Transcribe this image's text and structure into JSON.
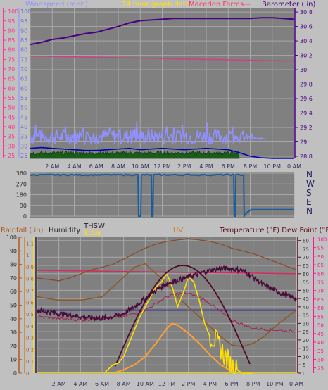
{
  "header": {
    "wind_label": "Windspeed (mph)",
    "title": "24 hour graph data",
    "station": "Macedon Farms",
    "sep": "---",
    "baro_label": "Barometer (.in)"
  },
  "bottom_header": {
    "rain_label": "Rainfall (.in)",
    "humidity_label": "Humidity",
    "thsw_label": "THSW",
    "solar_label": "Solar",
    "uv_label": "UV",
    "temp_label": "Temperature (°F) Dew Point (°F)"
  },
  "time_ticks": [
    "2 AM",
    "4 AM",
    "6 AM",
    "8 AM",
    "10 AM",
    "12 PM",
    "2 PM",
    "4 PM",
    "6 PM",
    "8 PM",
    "10 PM",
    "0 AM"
  ],
  "colors": {
    "background": "#c0c0c0",
    "plot": "#808080",
    "grid": "#a8a8a8",
    "wind_axis": "#ff3399",
    "baro_axis": "#4b0082",
    "gust": "#9090ff",
    "avg_wind": "#0000c0",
    "wind_fill": "#1a5c1a",
    "barometer": "#4b0082",
    "windspeed_line": "#d04080",
    "direction": "#1a5ca0",
    "rain_axis": "#b05a20",
    "uv_axis": "#d08020",
    "thsw_axis": "#2a1a2a",
    "solar_axis": "#ffe000",
    "temp_axis": "#5a0a1a",
    "dew_axis": "#ff1493",
    "temperature": "#4a0a3a",
    "humidity": "#8b5a2b",
    "dewpoint": "#d03060",
    "solar": "#ffe000",
    "uv": "#ffa030",
    "thsw": "#500a2a",
    "hum_upper": "#a03040",
    "rain": "#e0d000",
    "baseline": "#303090"
  },
  "chart_data": [
    {
      "type": "line",
      "name": "wind_barometer",
      "x_ticks": [
        "2 AM",
        "4 AM",
        "6 AM",
        "8 AM",
        "10 AM",
        "12 PM",
        "2 PM",
        "4 PM",
        "6 PM",
        "8 PM",
        "10 PM",
        "0 AM"
      ],
      "wind_axis": {
        "label": "Windspeed (mph)",
        "ticks": [
          25,
          30,
          35,
          40,
          45,
          50,
          55,
          60,
          65,
          70,
          75,
          80,
          85,
          90,
          95,
          100
        ],
        "ylim": [
          23.5,
          101.5
        ]
      },
      "baro_axis": {
        "label": "Barometer (.in)",
        "ticks": [
          "28.8",
          "29",
          "29.2",
          "29.4",
          "29.6",
          "29.8",
          "30",
          "30.2",
          "30.4",
          "30.6",
          "30.8"
        ],
        "ylim": [
          28.77,
          30.85
        ]
      },
      "barometer": {
        "x": [
          0,
          1,
          2,
          3,
          4,
          5,
          6,
          7,
          8,
          9,
          10,
          11,
          12,
          13,
          14,
          15,
          16,
          17,
          18,
          19,
          20,
          21,
          22,
          23,
          24
        ],
        "y": [
          30.35,
          30.38,
          30.42,
          30.44,
          30.47,
          30.5,
          30.52,
          30.56,
          30.6,
          30.65,
          30.68,
          30.69,
          30.7,
          30.71,
          30.71,
          30.71,
          30.71,
          30.71,
          30.71,
          30.71,
          30.71,
          30.72,
          30.72,
          30.71,
          30.7
        ]
      },
      "level_line": {
        "x": [
          0,
          24
        ],
        "y": [
          30.19,
          30.12
        ]
      },
      "gust": {
        "base_y": 29.04,
        "amp": 0.22,
        "peak_y": 29.45,
        "end_x": 21.5
      },
      "avg_wind": {
        "x": [
          0,
          1,
          2,
          3,
          4,
          5,
          6,
          7,
          8,
          9,
          10,
          11,
          12,
          13,
          14,
          15,
          16,
          17,
          18,
          19,
          20,
          21,
          22,
          23,
          24
        ],
        "y": [
          28.91,
          28.92,
          28.91,
          28.9,
          28.89,
          28.88,
          28.88,
          28.89,
          28.9,
          28.91,
          28.89,
          28.9,
          28.91,
          28.9,
          28.89,
          28.9,
          28.91,
          28.9,
          28.89,
          28.85,
          28.8,
          28.78,
          28.77,
          28.77,
          28.77
        ]
      },
      "wind_fill_top": 28.87
    },
    {
      "type": "line",
      "name": "wind_direction",
      "left_ticks": [
        "360",
        "270",
        "180",
        "90",
        "0"
      ],
      "right_ticks": [
        "N",
        "W",
        "S",
        "E",
        "N"
      ],
      "ylim": [
        0,
        360
      ],
      "x": [
        0,
        9.8,
        9.85,
        10.05,
        10.1,
        11,
        11.05,
        11.15,
        11.2,
        18.5,
        18.55,
        18.65,
        18.7,
        19.4,
        19.45,
        19.7,
        20.1,
        24
      ],
      "y": [
        345,
        345,
        0,
        0,
        345,
        345,
        0,
        0,
        345,
        345,
        0,
        0,
        345,
        345,
        0,
        30,
        55,
        55
      ]
    },
    {
      "type": "line",
      "name": "temperature_humidity_solar",
      "x_ticks": [
        "2 AM",
        "4 AM",
        "6 AM",
        "8 AM",
        "10 AM",
        "12 PM",
        "2 PM",
        "4 PM",
        "6 PM",
        "8 PM",
        "10 PM",
        "0 AM"
      ],
      "rain_ticks": [
        "0",
        "10",
        "20",
        "30",
        "40",
        "50",
        "60",
        "70",
        "80",
        "90",
        "100"
      ],
      "uv_ticks": [
        "0",
        "0.1",
        "0.2",
        "0.3",
        "0.4",
        "0.5",
        "0.6",
        "0.7",
        "0.8",
        "0.9",
        "1",
        "1.1"
      ],
      "thsw_ticks": [
        "0",
        "0.1",
        "0.2",
        "0.3",
        "0.4",
        "0.5",
        "0.6",
        "0.7",
        "0.8",
        "0.9",
        "1",
        "1.1"
      ],
      "temp_ticks": [
        "0",
        "5",
        "10",
        "15",
        "20",
        "25",
        "30",
        "35",
        "40",
        "45",
        "50",
        "55",
        "60",
        "65",
        "70",
        "75",
        "80"
      ],
      "dew_ticks": [
        "25",
        "30",
        "35",
        "40",
        "45",
        "50",
        "55",
        "60",
        "65",
        "70",
        "75",
        "80",
        "85",
        "90",
        "95",
        "100"
      ],
      "temperature": {
        "x": [
          0,
          2,
          4,
          6,
          7,
          8,
          9,
          10,
          11,
          12,
          13,
          14,
          15,
          16,
          17,
          18,
          19,
          20,
          21,
          22,
          23,
          24
        ],
        "y": [
          38,
          36,
          34,
          33,
          34,
          36,
          40,
          45,
          50,
          54,
          56,
          58,
          60,
          62,
          63,
          63,
          62,
          58,
          53,
          50,
          47,
          45
        ]
      },
      "humidity": {
        "x": [
          0,
          2,
          4,
          6,
          8,
          9,
          10,
          11,
          12,
          13,
          14,
          15,
          16,
          17,
          18,
          19,
          20,
          21,
          22,
          23,
          24
        ],
        "y": [
          46,
          44,
          44,
          46,
          58,
          64,
          66,
          60,
          54,
          46,
          40,
          34,
          28,
          22,
          17,
          16,
          18,
          22,
          28,
          33,
          38
        ]
      },
      "dewpoint": {
        "x": [
          0,
          2,
          4,
          6,
          8,
          10,
          12,
          13,
          14,
          15,
          16,
          18,
          20,
          22,
          24
        ],
        "y": [
          34,
          33,
          32,
          33,
          34,
          38,
          46,
          48,
          48,
          46,
          42,
          32,
          27,
          26,
          25
        ]
      },
      "level_line": {
        "x": [
          0,
          24
        ],
        "y": [
          62,
          60
        ]
      },
      "hum_upper": {
        "x": [
          0,
          1,
          2,
          3,
          4,
          5,
          6,
          7,
          8,
          9,
          10,
          11,
          12,
          13,
          14,
          15,
          16,
          17,
          18,
          19,
          20,
          21,
          22,
          23,
          24
        ],
        "y": [
          70,
          69,
          68,
          70,
          73,
          76,
          78,
          80,
          84,
          88,
          92,
          95,
          97,
          98,
          99,
          98,
          97,
          95,
          92,
          90,
          88,
          85,
          82,
          79,
          76
        ]
      },
      "thsw": {
        "x": [
          5.5,
          6,
          7,
          8,
          9,
          10,
          11,
          12,
          13,
          14,
          15,
          16,
          17,
          18,
          19,
          20,
          21,
          22,
          24
        ],
        "y": [
          30,
          31,
          34,
          38,
          45,
          50,
          55,
          60,
          62,
          64,
          63,
          62,
          60,
          55,
          49,
          43,
          36,
          32,
          30
        ]
      },
      "solar": {
        "x": [
          6.2,
          7,
          7.5,
          8,
          8.5,
          9,
          9.5,
          10,
          10.5,
          11,
          11.5,
          12,
          12.5,
          13,
          13.5,
          14,
          14.5,
          15,
          15.5,
          16,
          16.5,
          17,
          17.5,
          18,
          18.5,
          19,
          19.5,
          20
        ],
        "y": [
          0,
          5,
          6,
          10,
          18,
          26,
          34,
          40,
          46,
          52,
          55,
          60,
          52,
          40,
          48,
          58,
          55,
          44,
          30,
          22,
          20,
          15,
          9,
          5,
          2,
          0,
          0,
          0
        ]
      },
      "uv": {
        "x": [
          7,
          8,
          9,
          10,
          11,
          12,
          12.5,
          13,
          14,
          15,
          16,
          17,
          18,
          19,
          20
        ],
        "y": [
          0,
          2,
          5,
          10,
          18,
          27,
          30,
          29,
          24,
          18,
          11,
          5,
          1,
          0,
          0
        ]
      },
      "baseline": {
        "y": 38
      }
    }
  ]
}
